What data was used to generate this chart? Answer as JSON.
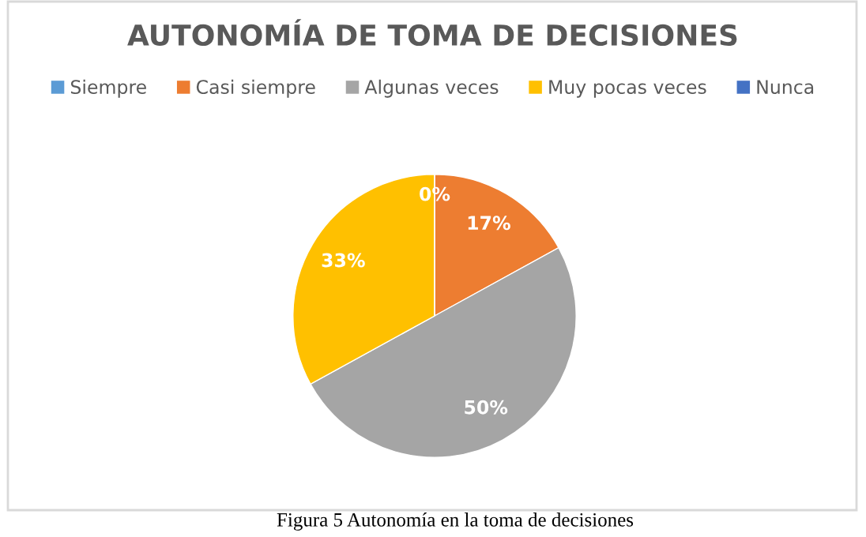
{
  "chart_data": {
    "type": "pie",
    "title": "AUTONOMÍA DE TOMA DE DECISIONES",
    "categories": [
      "Siempre",
      "Casi siempre",
      "Algunas veces",
      "Muy pocas veces",
      "Nunca"
    ],
    "values": [
      0,
      17,
      50,
      33,
      0
    ],
    "colors": [
      "#5b9bd5",
      "#ed7d31",
      "#a5a5a5",
      "#ffc000",
      "#4472c4"
    ],
    "value_labels": [
      "0%",
      "17%",
      "50%",
      "33%",
      null
    ],
    "legend": "top",
    "annotations": [
      "Figura 5 Autonomía en la toma de decisiones"
    ]
  }
}
